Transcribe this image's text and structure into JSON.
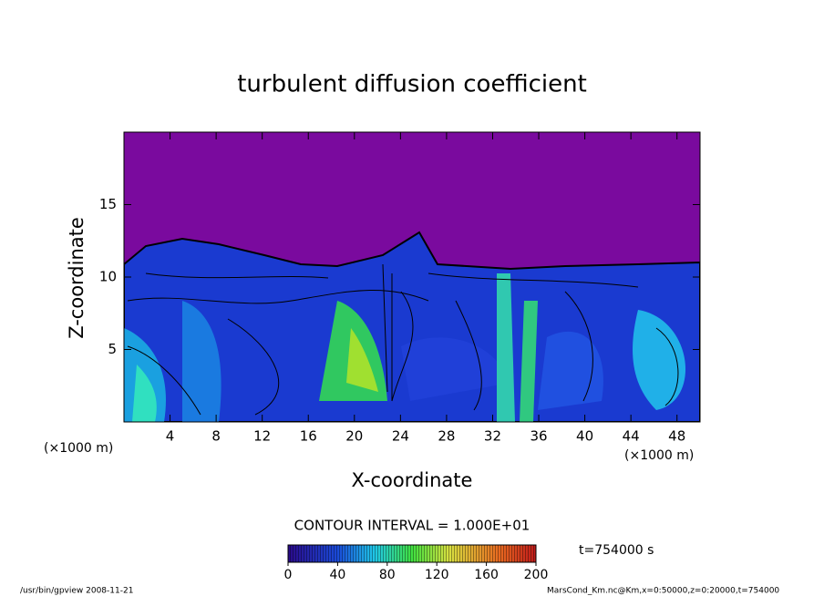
{
  "chart_data": {
    "type": "contour",
    "title": "turbulent diffusion coefficient",
    "x_label": "X-coordinate",
    "y_label": "Z-coordinate",
    "x_unit": "(×1000 m)",
    "y_unit": "(×1000 m)",
    "xlim": [
      0,
      50
    ],
    "xticks": [
      4,
      8,
      12,
      16,
      20,
      24,
      28,
      32,
      36,
      40,
      44,
      48
    ],
    "ylim": [
      0,
      20
    ],
    "yticks": [
      5,
      10,
      15
    ],
    "contour_interval": "CONTOUR INTERVAL = 1.000E+01",
    "time_label": "t=754000 s",
    "colorbar": {
      "lim": [
        0,
        200
      ],
      "ticks": [
        0,
        40,
        80,
        120,
        160,
        200
      ]
    },
    "footer_left": "/usr/bin/gpview   2008-11-21",
    "footer_right": "MarsCond_Km.nc@Km,x=0:50000,z=0:20000,t=754000"
  }
}
